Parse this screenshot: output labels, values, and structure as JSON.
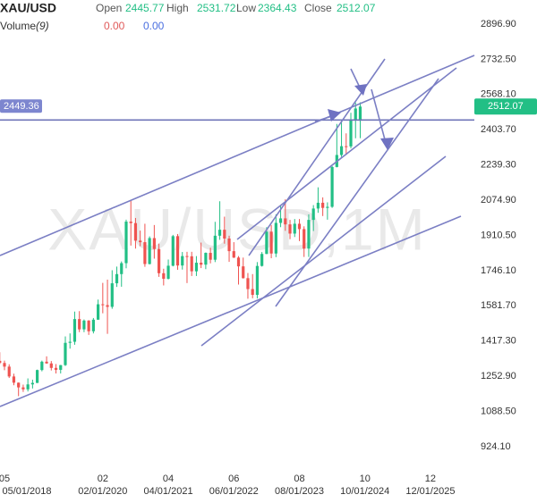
{
  "chart_data": {
    "type": "candlestick",
    "title": "XAU/USD",
    "watermark": "XAU/USD,1M",
    "ohlc_labels": [
      "Open",
      "High",
      "Low",
      "Close"
    ],
    "volume": {
      "label": "Volume",
      "period": "(9)",
      "values": [
        0,
        0
      ],
      "value_labels": [
        "0.00",
        "0.00"
      ],
      "colors": [
        "#e05a5a",
        "#4a6fe0"
      ]
    },
    "up_color": "#22bf85",
    "down_color": "#ef5350",
    "x": [
      "04/01/2018",
      "05/01/2018",
      "06/01/2018",
      "07/01/2018",
      "08/01/2018",
      "09/01/2018",
      "10/01/2018",
      "11/01/2018",
      "12/01/2018",
      "01/01/2019",
      "02/01/2019",
      "03/01/2019",
      "04/01/2019",
      "05/01/2019",
      "06/01/2019",
      "07/01/2019",
      "08/01/2019",
      "09/01/2019",
      "10/01/2019",
      "11/01/2019",
      "12/01/2019",
      "01/01/2020",
      "02/01/2020",
      "03/01/2020",
      "04/01/2020",
      "05/01/2020",
      "06/01/2020",
      "07/01/2020",
      "08/01/2020",
      "09/01/2020",
      "10/01/2020",
      "11/01/2020",
      "12/01/2020",
      "01/01/2021",
      "02/01/2021",
      "03/01/2021",
      "04/01/2021",
      "05/01/2021",
      "06/01/2021",
      "07/01/2021",
      "08/01/2021",
      "09/01/2021",
      "10/01/2021",
      "11/01/2021",
      "12/01/2021",
      "01/01/2022",
      "02/01/2022",
      "03/01/2022",
      "04/01/2022",
      "05/01/2022",
      "06/01/2022",
      "07/01/2022",
      "08/01/2022",
      "09/01/2022",
      "10/01/2022",
      "11/01/2022",
      "12/01/2022",
      "01/01/2023",
      "02/01/2023",
      "03/01/2023",
      "04/01/2023",
      "05/01/2023",
      "06/01/2023",
      "07/01/2023",
      "08/01/2023",
      "09/01/2023",
      "10/01/2023",
      "11/01/2023",
      "12/01/2023",
      "01/01/2024",
      "02/01/2024",
      "03/01/2024",
      "04/01/2024",
      "05/01/2024",
      "06/01/2024",
      "07/01/2024",
      "08/01/2024",
      "09/01/2024"
    ],
    "open": [
      1325,
      1315,
      1298,
      1252,
      1223,
      1201,
      1192,
      1215,
      1222,
      1282,
      1321,
      1313,
      1292,
      1283,
      1305,
      1409,
      1414,
      1520,
      1472,
      1513,
      1463,
      1517,
      1589,
      1585,
      1577,
      1687,
      1730,
      1781,
      1975,
      1968,
      1886,
      1879,
      1777,
      1898,
      1847,
      1734,
      1708,
      1769,
      1907,
      1770,
      1814,
      1813,
      1743,
      1783,
      1774,
      1829,
      1797,
      1909,
      1937,
      1896,
      1837,
      1807,
      1766,
      1711,
      1660,
      1633,
      1768,
      1824,
      1928,
      1826,
      1969,
      1990,
      1962,
      1919,
      1965,
      1940,
      1849,
      1983,
      2036,
      2063,
      2039,
      2044,
      2230,
      2286,
      2327,
      2326,
      2447,
      2445.77
    ],
    "high": [
      1365,
      1326,
      1309,
      1265,
      1224,
      1214,
      1243,
      1237,
      1284,
      1326,
      1346,
      1324,
      1310,
      1306,
      1439,
      1453,
      1555,
      1557,
      1518,
      1515,
      1525,
      1611,
      1689,
      1704,
      1748,
      1765,
      1789,
      1984,
      2075,
      1992,
      1933,
      1965,
      1906,
      1959,
      1872,
      1755,
      1798,
      1913,
      1917,
      1833,
      1834,
      1834,
      1814,
      1877,
      1831,
      1853,
      1974,
      2070,
      1998,
      1909,
      1879,
      1814,
      1807,
      1735,
      1730,
      1786,
      1833,
      1949,
      1959,
      2009,
      2048,
      2079,
      1983,
      1987,
      1987,
      1953,
      2009,
      2052,
      2135,
      2088,
      2065,
      2234,
      2431,
      2450,
      2387,
      2483,
      2531,
      2531.72
    ],
    "low": [
      1310,
      1281,
      1245,
      1211,
      1160,
      1180,
      1182,
      1196,
      1221,
      1276,
      1311,
      1280,
      1266,
      1266,
      1301,
      1382,
      1400,
      1459,
      1459,
      1446,
      1453,
      1517,
      1547,
      1451,
      1568,
      1670,
      1671,
      1757,
      1863,
      1849,
      1860,
      1764,
      1775,
      1802,
      1717,
      1677,
      1705,
      1766,
      1750,
      1751,
      1688,
      1721,
      1721,
      1758,
      1753,
      1780,
      1786,
      1890,
      1872,
      1787,
      1805,
      1681,
      1709,
      1615,
      1617,
      1616,
      1765,
      1823,
      1804,
      1809,
      1949,
      1932,
      1893,
      1903,
      1884,
      1810,
      1810,
      1931,
      2016,
      2001,
      1984,
      2039,
      2228,
      2277,
      2286,
      2317,
      2364,
      2364.43
    ],
    "close": [
      1315,
      1298,
      1252,
      1223,
      1201,
      1192,
      1215,
      1222,
      1282,
      1321,
      1313,
      1292,
      1283,
      1305,
      1409,
      1414,
      1520,
      1472,
      1513,
      1463,
      1517,
      1589,
      1585,
      1577,
      1687,
      1730,
      1781,
      1975,
      1968,
      1886,
      1879,
      1777,
      1898,
      1847,
      1734,
      1708,
      1769,
      1907,
      1770,
      1814,
      1813,
      1743,
      1783,
      1774,
      1829,
      1797,
      1909,
      1937,
      1896,
      1837,
      1807,
      1766,
      1711,
      1660,
      1633,
      1768,
      1824,
      1928,
      1826,
      1969,
      1990,
      1962,
      1919,
      1965,
      1940,
      1849,
      1983,
      2036,
      2063,
      2039,
      2044,
      2230,
      2286,
      2327,
      2326,
      2447,
      2503,
      2512.07
    ],
    "ylim": [
      807.3,
      3009.5
    ],
    "yticks": [
      {
        "value": 924.1,
        "label": "924.10"
      },
      {
        "value": 1088.5,
        "label": "1088.50"
      },
      {
        "value": 1252.9,
        "label": "1252.90"
      },
      {
        "value": 1417.3,
        "label": "1417.30"
      },
      {
        "value": 1581.7,
        "label": "1581.70"
      },
      {
        "value": 1746.1,
        "label": "1746.10"
      },
      {
        "value": 1910.5,
        "label": "1910.50"
      },
      {
        "value": 2074.9,
        "label": "2074.90"
      },
      {
        "value": 2239.3,
        "label": "2239.30"
      },
      {
        "value": 2403.7,
        "label": "2403.70"
      },
      {
        "value": 2568.1,
        "label": "2568.10"
      },
      {
        "value": 2732.5,
        "label": "2732.50"
      },
      {
        "value": 2896.9,
        "label": "2896.90"
      }
    ],
    "xticks": [
      {
        "value": "05/01/2018",
        "label": "05"
      },
      {
        "value": "02/01/2020",
        "label": "02"
      },
      {
        "value": "04/01/2021",
        "label": "04"
      },
      {
        "value": "06/01/2022",
        "label": "06"
      },
      {
        "value": "08/01/2023",
        "label": "08"
      },
      {
        "value": "10/01/2024",
        "label": "10"
      },
      {
        "value": "12/01/2025",
        "label": "12"
      }
    ],
    "hline": {
      "value": 2449.36,
      "color": "#6f74b8"
    }
  }
}
